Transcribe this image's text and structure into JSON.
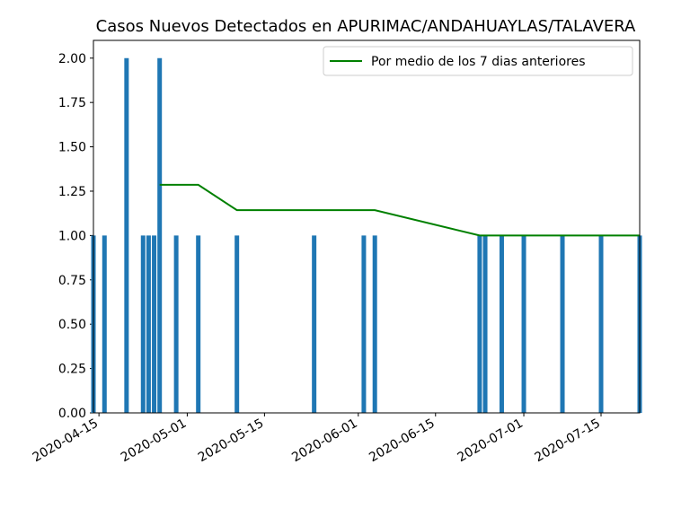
{
  "chart_data": {
    "type": "bar",
    "title": "Casos Nuevos Detectados en APURIMAC/ANDAHUAYLAS/TALAVERA",
    "xlabel": "",
    "ylabel": "",
    "xlim": [
      "2020-04-14",
      "2020-07-22"
    ],
    "ylim": [
      0,
      2.1
    ],
    "grid": false,
    "legend_position": "top-right",
    "bar_color": "#1f77b4",
    "line_color": "#008000",
    "x_ticks": [
      "2020-04-15",
      "2020-05-01",
      "2020-05-15",
      "2020-06-01",
      "2020-06-15",
      "2020-07-01",
      "2020-07-15"
    ],
    "y_ticks": [
      "0.00",
      "0.25",
      "0.50",
      "0.75",
      "1.00",
      "1.25",
      "1.50",
      "1.75",
      "2.00"
    ],
    "bars": [
      {
        "date": "2020-04-14",
        "value": 1
      },
      {
        "date": "2020-04-16",
        "value": 1
      },
      {
        "date": "2020-04-20",
        "value": 2
      },
      {
        "date": "2020-04-23",
        "value": 1
      },
      {
        "date": "2020-04-24",
        "value": 1
      },
      {
        "date": "2020-04-25",
        "value": 1
      },
      {
        "date": "2020-04-26",
        "value": 2
      },
      {
        "date": "2020-04-29",
        "value": 1
      },
      {
        "date": "2020-05-03",
        "value": 1
      },
      {
        "date": "2020-05-10",
        "value": 1
      },
      {
        "date": "2020-05-24",
        "value": 1
      },
      {
        "date": "2020-06-02",
        "value": 1
      },
      {
        "date": "2020-06-04",
        "value": 1
      },
      {
        "date": "2020-06-23",
        "value": 1
      },
      {
        "date": "2020-06-24",
        "value": 1
      },
      {
        "date": "2020-06-27",
        "value": 1
      },
      {
        "date": "2020-07-01",
        "value": 1
      },
      {
        "date": "2020-07-08",
        "value": 1
      },
      {
        "date": "2020-07-15",
        "value": 1
      },
      {
        "date": "2020-07-22",
        "value": 1
      }
    ],
    "series": [
      {
        "name": "Por medio de los 7 dias anteriores",
        "points": [
          {
            "date": "2020-04-26",
            "value": 1.2857
          },
          {
            "date": "2020-05-03",
            "value": 1.2857
          },
          {
            "date": "2020-05-10",
            "value": 1.1429
          },
          {
            "date": "2020-06-04",
            "value": 1.1429
          },
          {
            "date": "2020-06-23",
            "value": 1.0
          },
          {
            "date": "2020-07-22",
            "value": 1.0
          }
        ]
      }
    ]
  }
}
